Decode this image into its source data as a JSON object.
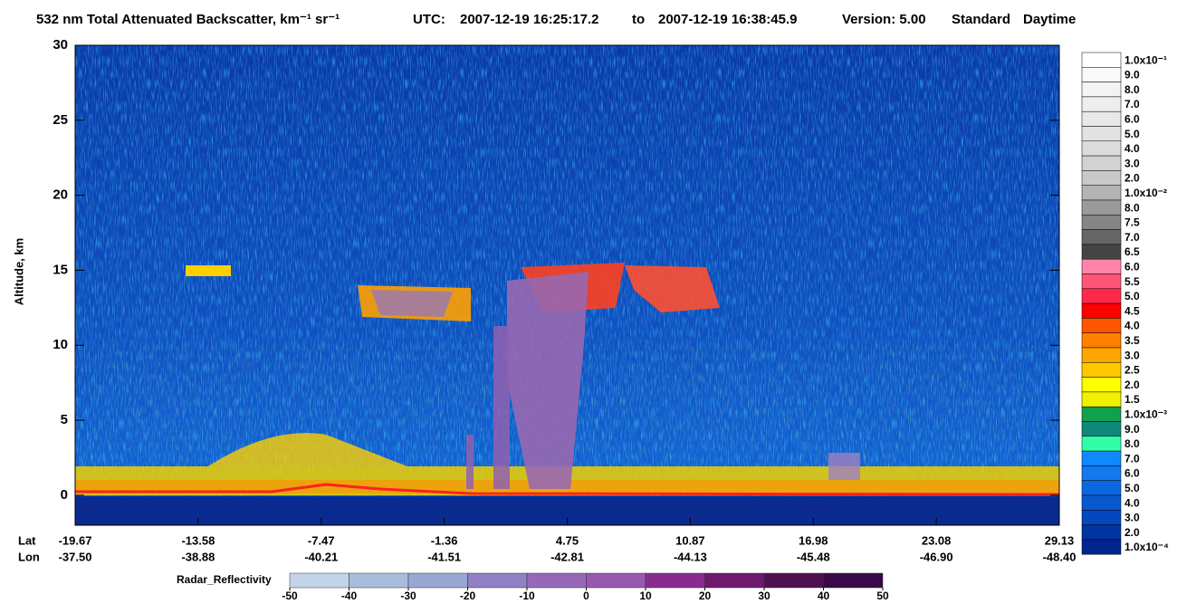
{
  "chart_data": {
    "type": "curtain",
    "title": "532 nm Total Attenuated Backscatter, km⁻¹ sr⁻¹",
    "utc_label": "UTC:",
    "start_time": "2007-12-19 16:25:17.2",
    "to_label": "to",
    "end_time": "2007-12-19 16:38:45.9",
    "version": "Version: 5.00",
    "product": "Standard",
    "daytime": "Daytime",
    "ylabel": "Altitude, km",
    "ylim": [
      -2,
      30
    ],
    "yticks": [
      0,
      5,
      10,
      15,
      20,
      25,
      30
    ],
    "lat_title": "Lat",
    "lon_title": "Lon",
    "lat_labels": [
      -19.67,
      -13.58,
      -7.47,
      -1.36,
      4.75,
      10.87,
      16.98,
      23.08,
      29.13
    ],
    "lon_labels": [
      {
        "value": -37.5,
        "label": "-37.50"
      },
      -38.88,
      -40.21,
      -41.51,
      -42.81,
      -44.13,
      -45.48,
      {
        "value": -46.9,
        "label": "-46.90"
      },
      {
        "value": -48.4,
        "label": "-48.40"
      }
    ],
    "colorbar": [
      {
        "label": "1.0x10⁻¹",
        "color": "#ffffff"
      },
      {
        "label": "9.0",
        "color": "#fafafa"
      },
      {
        "label": "8.0",
        "color": "#f4f4f4"
      },
      {
        "label": "7.0",
        "color": "#eeeeee"
      },
      {
        "label": "6.0",
        "color": "#e8e8e8"
      },
      {
        "label": "5.0",
        "color": "#e2e2e2"
      },
      {
        "label": "4.0",
        "color": "#dcdcdc"
      },
      {
        "label": "3.0",
        "color": "#d2d2d2"
      },
      {
        "label": "2.0",
        "color": "#c8c8c8"
      },
      {
        "label": "1.0x10⁻²",
        "color": "#b4b4b4"
      },
      {
        "label": "8.0",
        "color": "#9a9a9a"
      },
      {
        "label": "7.5",
        "color": "#858585"
      },
      {
        "label": "7.0",
        "color": "#666666"
      },
      {
        "label": "6.5",
        "color": "#444444"
      },
      {
        "label": "6.0",
        "color": "#ff85a8"
      },
      {
        "label": "5.5",
        "color": "#ff5578"
      },
      {
        "label": "5.0",
        "color": "#ff2848"
      },
      {
        "label": "4.5",
        "color": "#ff0000"
      },
      {
        "label": "4.0",
        "color": "#ff5500"
      },
      {
        "label": "3.5",
        "color": "#ff8000"
      },
      {
        "label": "3.0",
        "color": "#ffa500"
      },
      {
        "label": "2.5",
        "color": "#ffc800"
      },
      {
        "label": "2.0",
        "color": "#ffff00"
      },
      {
        "label": "1.5",
        "color": "#f0f000"
      },
      {
        "label": "1.0x10⁻³",
        "color": "#10a050"
      },
      {
        "label": "9.0",
        "color": "#108878"
      },
      {
        "label": "8.0",
        "color": "#30ffa8"
      },
      {
        "label": "7.0",
        "color": "#1088ff"
      },
      {
        "label": "6.0",
        "color": "#1478f0"
      },
      {
        "label": "5.0",
        "color": "#0a68e0"
      },
      {
        "label": "4.0",
        "color": "#0858d0"
      },
      {
        "label": "3.0",
        "color": "#0448c0"
      },
      {
        "label": "2.0",
        "color": "#0034a0"
      },
      {
        "label": "1.0x10⁻⁴",
        "color": "#002490"
      }
    ],
    "radar_label": "Radar_Reflectivity",
    "radar_ticks": [
      -50,
      -40,
      -30,
      -20,
      -10,
      0,
      10,
      20,
      30,
      40,
      50
    ],
    "radar_colors": [
      "#c4d4e8",
      "#a8bcdc",
      "#98a8d4",
      "#9080c4",
      "#9868b8",
      "#9858b0",
      "#8a2a90",
      "#701870",
      "#501050",
      "#380848"
    ]
  }
}
